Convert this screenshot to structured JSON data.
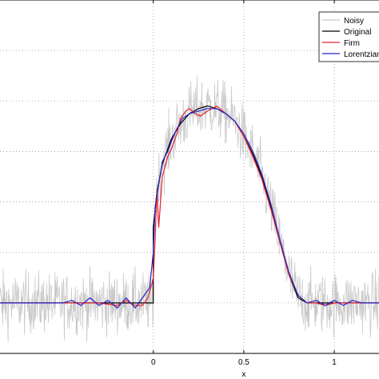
{
  "chart_data": {
    "type": "line",
    "title": "",
    "xlabel": "x",
    "ylabel": "",
    "xlim": [
      -0.9,
      1.3
    ],
    "ylim": [
      -0.2,
      1.2
    ],
    "grid": true,
    "grid_style": "dotted",
    "legend_placement": "top-right",
    "x_ticks": [
      {
        "value": 0,
        "label": "0"
      },
      {
        "value": 0.5,
        "label": "0.5"
      },
      {
        "value": 1,
        "label": "1"
      }
    ],
    "y_gridlines": [
      0.0,
      0.2,
      0.4,
      0.6,
      0.8,
      1.0
    ],
    "series": [
      {
        "name": "Noisy",
        "color": "#c8c8c8",
        "description": "original signal with additive noise (amplitude ~0.1)"
      },
      {
        "name": "Original",
        "color": "#000000",
        "x": [
          -0.9,
          0.0,
          0.0,
          0.02,
          0.05,
          0.1,
          0.15,
          0.2,
          0.25,
          0.3,
          0.35,
          0.4,
          0.45,
          0.5,
          0.55,
          0.6,
          0.65,
          0.7,
          0.75,
          0.8,
          0.85,
          1.3
        ],
        "values": [
          0.0,
          0.0,
          0.3,
          0.44,
          0.55,
          0.65,
          0.71,
          0.75,
          0.77,
          0.78,
          0.77,
          0.75,
          0.72,
          0.66,
          0.59,
          0.5,
          0.38,
          0.24,
          0.11,
          0.02,
          0.0,
          0.0
        ]
      },
      {
        "name": "Firm",
        "color": "#e8212a",
        "x": [
          -0.9,
          -0.5,
          -0.3,
          -0.2,
          -0.15,
          -0.1,
          -0.06,
          -0.03,
          -0.01,
          0.0,
          0.01,
          0.02,
          0.03,
          0.05,
          0.08,
          0.1,
          0.13,
          0.15,
          0.18,
          0.2,
          0.23,
          0.26,
          0.3,
          0.35,
          0.4,
          0.45,
          0.5,
          0.55,
          0.6,
          0.65,
          0.7,
          0.75,
          0.8,
          0.85,
          0.9,
          0.95,
          1.0,
          1.05,
          1.1,
          1.3
        ],
        "values": [
          0.0,
          0.0,
          0.0,
          -0.01,
          0.01,
          -0.01,
          -0.01,
          0.02,
          0.07,
          0.1,
          0.25,
          0.45,
          0.3,
          0.5,
          0.58,
          0.61,
          0.67,
          0.73,
          0.76,
          0.77,
          0.75,
          0.74,
          0.76,
          0.78,
          0.75,
          0.72,
          0.66,
          0.58,
          0.49,
          0.37,
          0.24,
          0.11,
          0.03,
          0.0,
          0.0,
          -0.01,
          0.0,
          0.0,
          0.0,
          0.0
        ]
      },
      {
        "name": "Lorentzian",
        "color": "#2525c8",
        "x": [
          -0.9,
          -0.6,
          -0.5,
          -0.45,
          -0.4,
          -0.35,
          -0.3,
          -0.25,
          -0.2,
          -0.15,
          -0.1,
          -0.05,
          -0.02,
          0.0,
          0.01,
          0.03,
          0.05,
          0.08,
          0.1,
          0.13,
          0.16,
          0.2,
          0.25,
          0.3,
          0.35,
          0.4,
          0.45,
          0.5,
          0.55,
          0.6,
          0.65,
          0.7,
          0.75,
          0.8,
          0.85,
          0.9,
          0.95,
          1.0,
          1.05,
          1.1,
          1.15,
          1.2,
          1.3
        ],
        "values": [
          0.0,
          0.0,
          0.0,
          0.01,
          -0.01,
          0.02,
          -0.01,
          0.01,
          -0.02,
          0.02,
          -0.02,
          0.03,
          0.06,
          0.2,
          0.38,
          0.47,
          0.56,
          0.6,
          0.64,
          0.69,
          0.73,
          0.75,
          0.76,
          0.77,
          0.77,
          0.75,
          0.72,
          0.67,
          0.6,
          0.51,
          0.39,
          0.25,
          0.12,
          0.03,
          0.0,
          0.01,
          -0.01,
          0.01,
          -0.01,
          0.01,
          0.0,
          0.0,
          0.0
        ]
      }
    ]
  }
}
